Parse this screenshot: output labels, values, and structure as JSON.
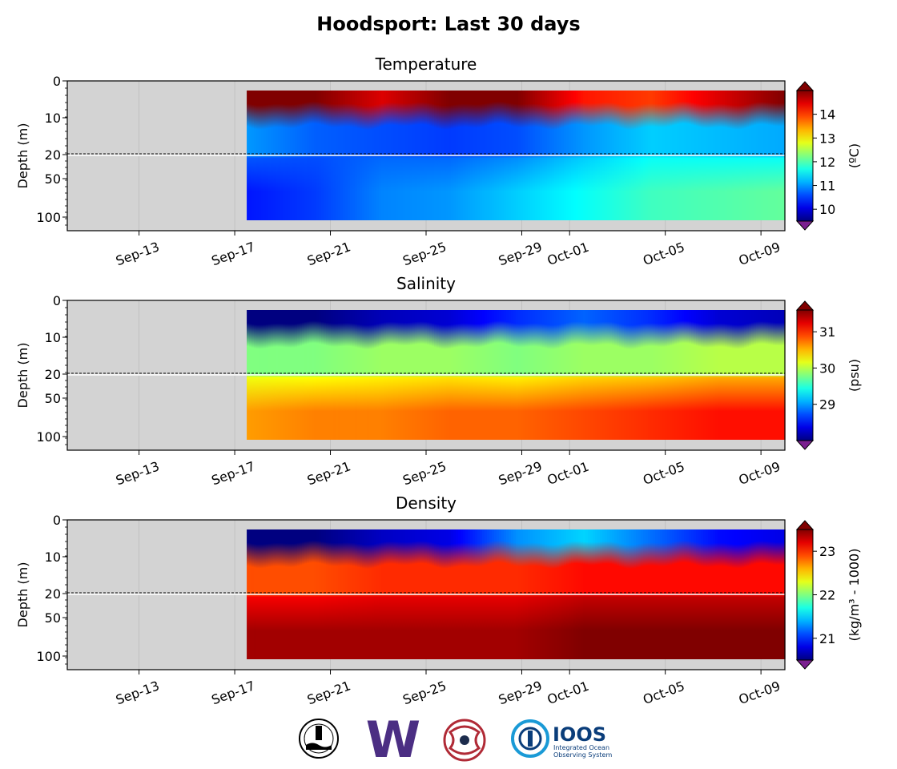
{
  "page_title": "Hoodsport: Last 30 days",
  "x_ticks": [
    "Sep-13",
    "Sep-17",
    "Sep-21",
    "Sep-25",
    "Sep-29",
    "Oct-01",
    "Oct-05",
    "Oct-09"
  ],
  "chart_data": [
    {
      "type": "heatmap",
      "title": "Temperature",
      "ylabel": "Depth (m)",
      "colorbar_label": "(ºC)",
      "colorbar_ticks": [
        "10",
        "11",
        "12",
        "13",
        "14"
      ],
      "colorbar_range": [
        9.5,
        15.0
      ],
      "colorbar_extend": "both",
      "colormap": "jet",
      "y_ticks": [
        "0",
        "10",
        "20",
        "50",
        "100"
      ],
      "y_axis": "split: 0–20 m linear (top), 20–~130 m compressed (bottom), inverted",
      "x_ticks": [
        "Sep-13",
        "Sep-17",
        "Sep-21",
        "Sep-25",
        "Sep-29",
        "Oct-01",
        "Oct-05",
        "Oct-09"
      ],
      "data_start": "Sep-17",
      "data_end": "Oct-09",
      "surface_values": [
        15.0,
        15.0,
        14.5,
        15.0,
        15.0,
        14.2,
        14.0,
        14.5,
        15.0
      ],
      "mid_values": [
        11.0,
        10.7,
        10.6,
        10.5,
        10.6,
        11.0,
        11.3,
        11.2,
        11.1
      ],
      "deep_values": [
        10.3,
        10.5,
        10.9,
        11.0,
        11.3,
        11.6,
        11.9,
        12.0,
        12.1
      ],
      "no_data_color": "#d3d3d3",
      "split_line_depth": 20
    },
    {
      "type": "heatmap",
      "title": "Salinity",
      "ylabel": "Depth (m)",
      "colorbar_label": "(psu)",
      "colorbar_ticks": [
        "29",
        "30",
        "31"
      ],
      "colorbar_range": [
        28.0,
        31.6
      ],
      "colorbar_extend": "both",
      "colormap": "jet",
      "y_ticks": [
        "0",
        "10",
        "20",
        "50",
        "100"
      ],
      "y_axis": "split: 0–20 m linear (top), 20–~130 m compressed (bottom), inverted",
      "x_ticks": [
        "Sep-13",
        "Sep-17",
        "Sep-21",
        "Sep-25",
        "Sep-29",
        "Oct-01",
        "Oct-05",
        "Oct-09"
      ],
      "data_start": "Sep-17",
      "data_end": "Oct-09",
      "surface_values": [
        28.0,
        28.0,
        28.2,
        28.3,
        28.6,
        28.8,
        28.6,
        28.3,
        28.2
      ],
      "mid_values": [
        29.8,
        29.8,
        29.9,
        29.9,
        29.8,
        29.9,
        29.9,
        30.0,
        30.0
      ],
      "deep_values": [
        30.6,
        30.7,
        30.7,
        30.8,
        30.8,
        30.9,
        31.0,
        31.1,
        31.1
      ],
      "no_data_color": "#d3d3d3",
      "split_line_depth": 20
    },
    {
      "type": "heatmap",
      "title": "Density",
      "ylabel": "(kg/m³ - 1000)",
      "axis_ylabel": "Depth (m)",
      "colorbar_label": "(kg/m³ - 1000)",
      "colorbar_ticks": [
        "21",
        "22",
        "23"
      ],
      "colorbar_range": [
        20.5,
        23.5
      ],
      "colorbar_extend": "both",
      "colormap": "jet",
      "y_ticks": [
        "0",
        "10",
        "20",
        "50",
        "100"
      ],
      "y_axis": "split: 0–20 m linear (top), 20–~130 m compressed (bottom), inverted",
      "x_ticks": [
        "Sep-13",
        "Sep-17",
        "Sep-21",
        "Sep-25",
        "Sep-29",
        "Oct-01",
        "Oct-05",
        "Oct-09"
      ],
      "data_start": "Sep-17",
      "data_end": "Oct-09",
      "surface_values": [
        20.5,
        20.5,
        20.7,
        20.8,
        21.3,
        21.5,
        21.2,
        20.9,
        20.8
      ],
      "mid_values": [
        22.9,
        22.9,
        23.0,
        23.0,
        23.0,
        23.1,
        23.1,
        23.1,
        23.1
      ],
      "deep_values": [
        23.4,
        23.4,
        23.4,
        23.4,
        23.4,
        23.5,
        23.5,
        23.5,
        23.5
      ],
      "no_data_color": "#d3d3d3",
      "split_line_depth": 20
    }
  ],
  "logos": [
    {
      "name": "nanoos-seal-logo",
      "text": ""
    },
    {
      "name": "uw-logo",
      "text": "W"
    },
    {
      "name": "tribal-art-logo",
      "text": ""
    },
    {
      "name": "ioos-logo",
      "text": "IOOS",
      "sub1": "Integrated Ocean",
      "sub2": "Observing System"
    }
  ]
}
